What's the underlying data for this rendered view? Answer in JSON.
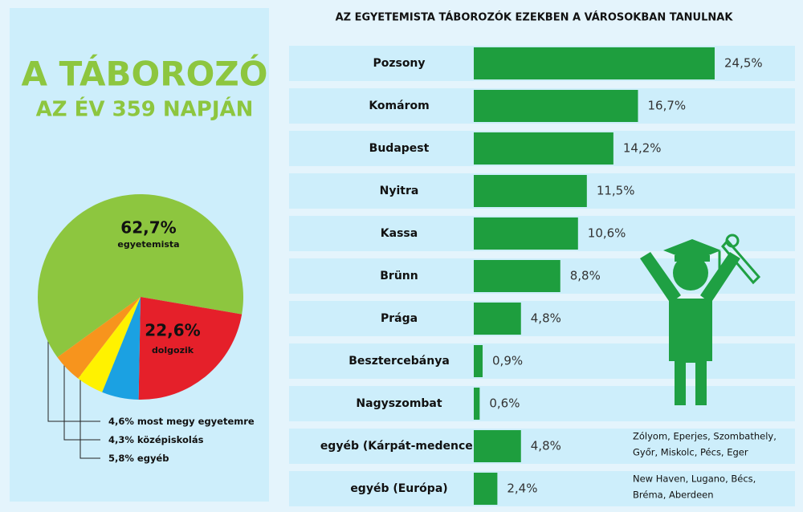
{
  "header": {
    "title": [
      "A TÁBOROZÓ",
      "AZ ÉV 359 NAPJÁN"
    ]
  },
  "chart_data": [
    {
      "type": "pie",
      "categories": [
        "egyetemista",
        "dolgozik",
        "egyéb",
        "középiskolás",
        "most megy egyetemre"
      ],
      "values": [
        62.7,
        22.6,
        5.8,
        4.3,
        4.6
      ],
      "value_labels": [
        "62,7%",
        "22,6%",
        "5,8%",
        "4,3%",
        "4,6%"
      ],
      "colors": [
        "#8dc63f",
        "#e5202a",
        "#1ba1e2",
        "#fff200",
        "#f7941d"
      ]
    },
    {
      "type": "bar",
      "title": "AZ EGYETEMISTA TÁBOROZÓK EZEKBEN A VÁROSOKBAN TANULNAK",
      "categories": [
        "Pozsony",
        "Komárom",
        "Budapest",
        "Nyitra",
        "Kassa",
        "Brünn",
        "Prága",
        "Besztercebánya",
        "Nagyszombat",
        "egyéb (Kárpát-medence)",
        "egyéb (Európa)"
      ],
      "values": [
        24.5,
        16.7,
        14.2,
        11.5,
        10.6,
        8.8,
        4.8,
        0.9,
        0.6,
        4.8,
        2.4
      ],
      "value_labels": [
        "24,5%",
        "16,7%",
        "14,2%",
        "11,5%",
        "10,6%",
        "8,8%",
        "4,8%",
        "0,9%",
        "0,6%",
        "4,8%",
        "2,4%"
      ],
      "color": "#1e9e3e",
      "annotations": [
        [
          "Zólyom, Eperjes, Szombathely,",
          "Győr, Miskolc, Pécs, Eger"
        ],
        [
          "New Haven, Lugano, Bécs,",
          "Bréma, Aberdeen"
        ]
      ]
    }
  ]
}
